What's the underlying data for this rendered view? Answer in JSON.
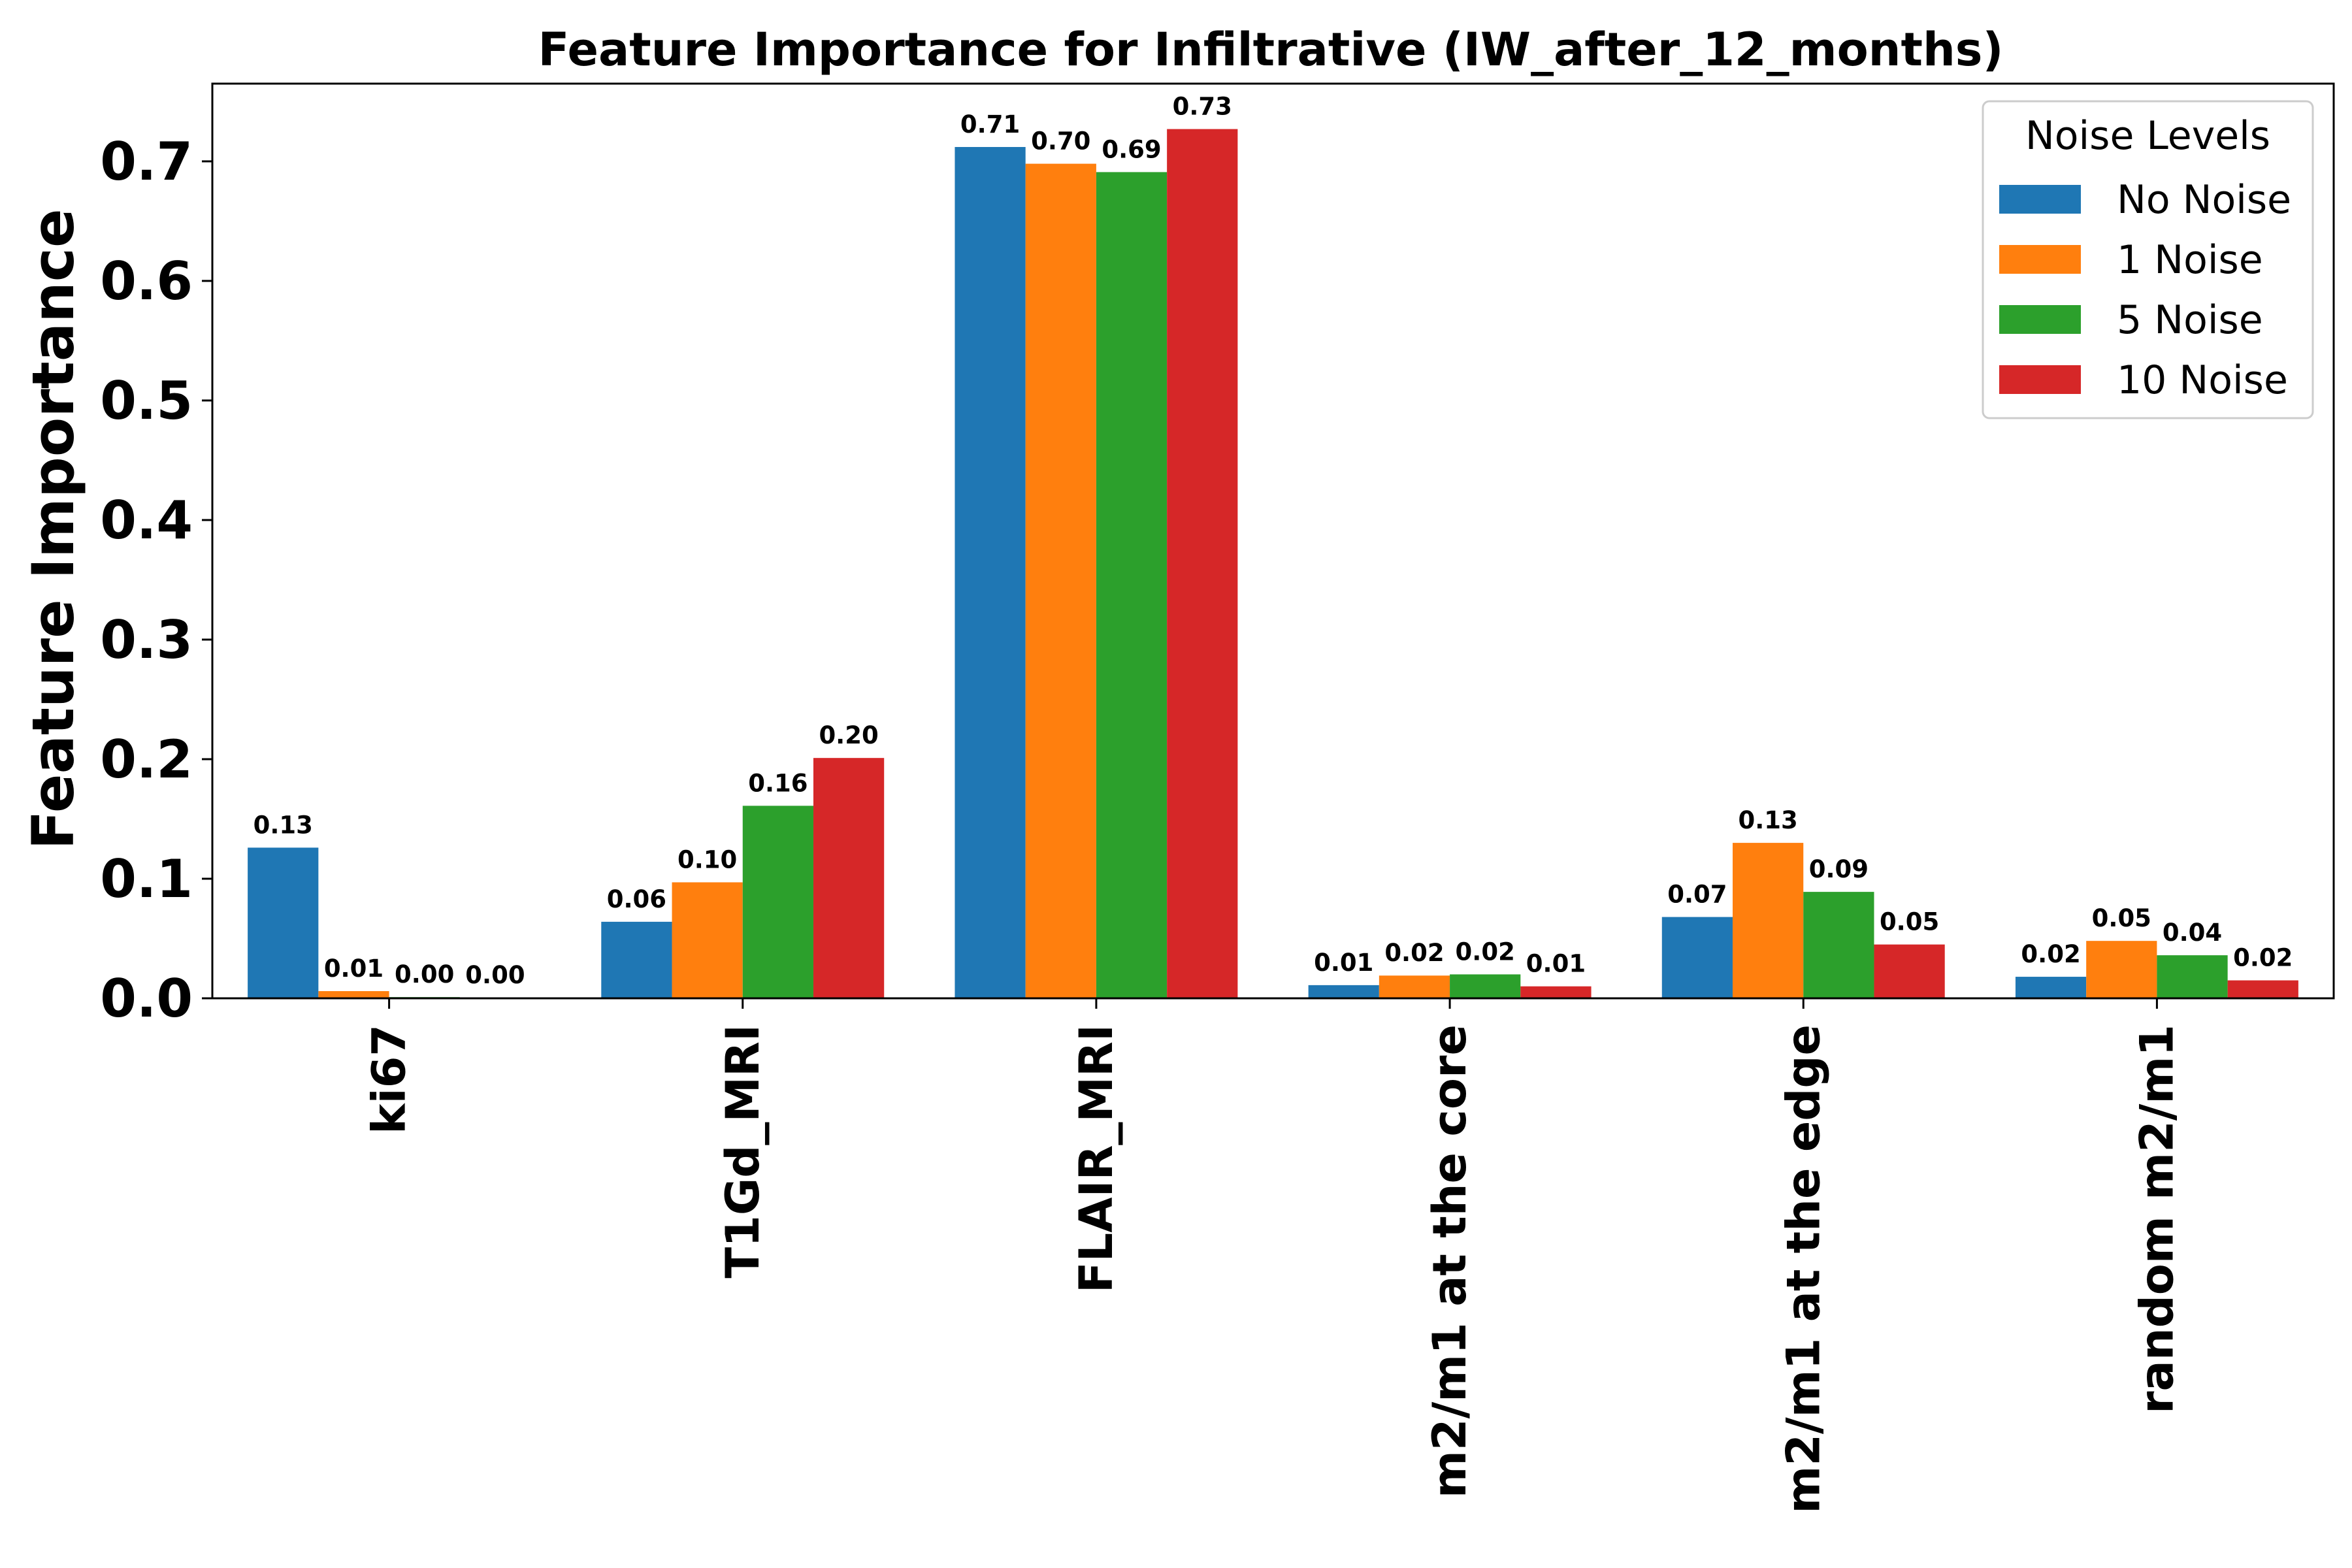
{
  "chart_data": {
    "type": "bar",
    "title": "Feature Importance for Infiltrative (IW_after_12_months)",
    "xlabel": "",
    "ylabel": "Feature Importance",
    "ylim": [
      0,
      0.765
    ],
    "yticks": [
      "0.0",
      "0.1",
      "0.2",
      "0.3",
      "0.4",
      "0.5",
      "0.6",
      "0.7"
    ],
    "categories": [
      "ki67",
      "T1Gd_MRI",
      "FLAIR_MRI",
      "m2/m1 at the core",
      "m2/m1 at the edge",
      "random m2/m1"
    ],
    "series": [
      {
        "name": "No Noise",
        "color": "#1f77b4",
        "values": [
          0.126,
          0.064,
          0.712,
          0.011,
          0.068,
          0.018
        ],
        "labels": [
          "0.13",
          "0.06",
          "0.71",
          "0.01",
          "0.07",
          "0.02"
        ]
      },
      {
        "name": "1 Noise",
        "color": "#ff7f0e",
        "values": [
          0.006,
          0.097,
          0.698,
          0.019,
          0.13,
          0.048
        ],
        "labels": [
          "0.01",
          "0.10",
          "0.70",
          "0.02",
          "0.13",
          "0.05"
        ]
      },
      {
        "name": "5 Noise",
        "color": "#2ca02c",
        "values": [
          0.001,
          0.161,
          0.691,
          0.02,
          0.089,
          0.036
        ],
        "labels": [
          "0.00",
          "0.16",
          "0.69",
          "0.02",
          "0.09",
          "0.04"
        ]
      },
      {
        "name": "10 Noise",
        "color": "#d62728",
        "values": [
          0.0005,
          0.201,
          0.727,
          0.01,
          0.045,
          0.015
        ],
        "labels": [
          "0.00",
          "0.20",
          "0.73",
          "0.01",
          "0.05",
          "0.02"
        ]
      }
    ],
    "legend": {
      "title": "Noise Levels",
      "position": "top-right"
    },
    "grid": false
  }
}
